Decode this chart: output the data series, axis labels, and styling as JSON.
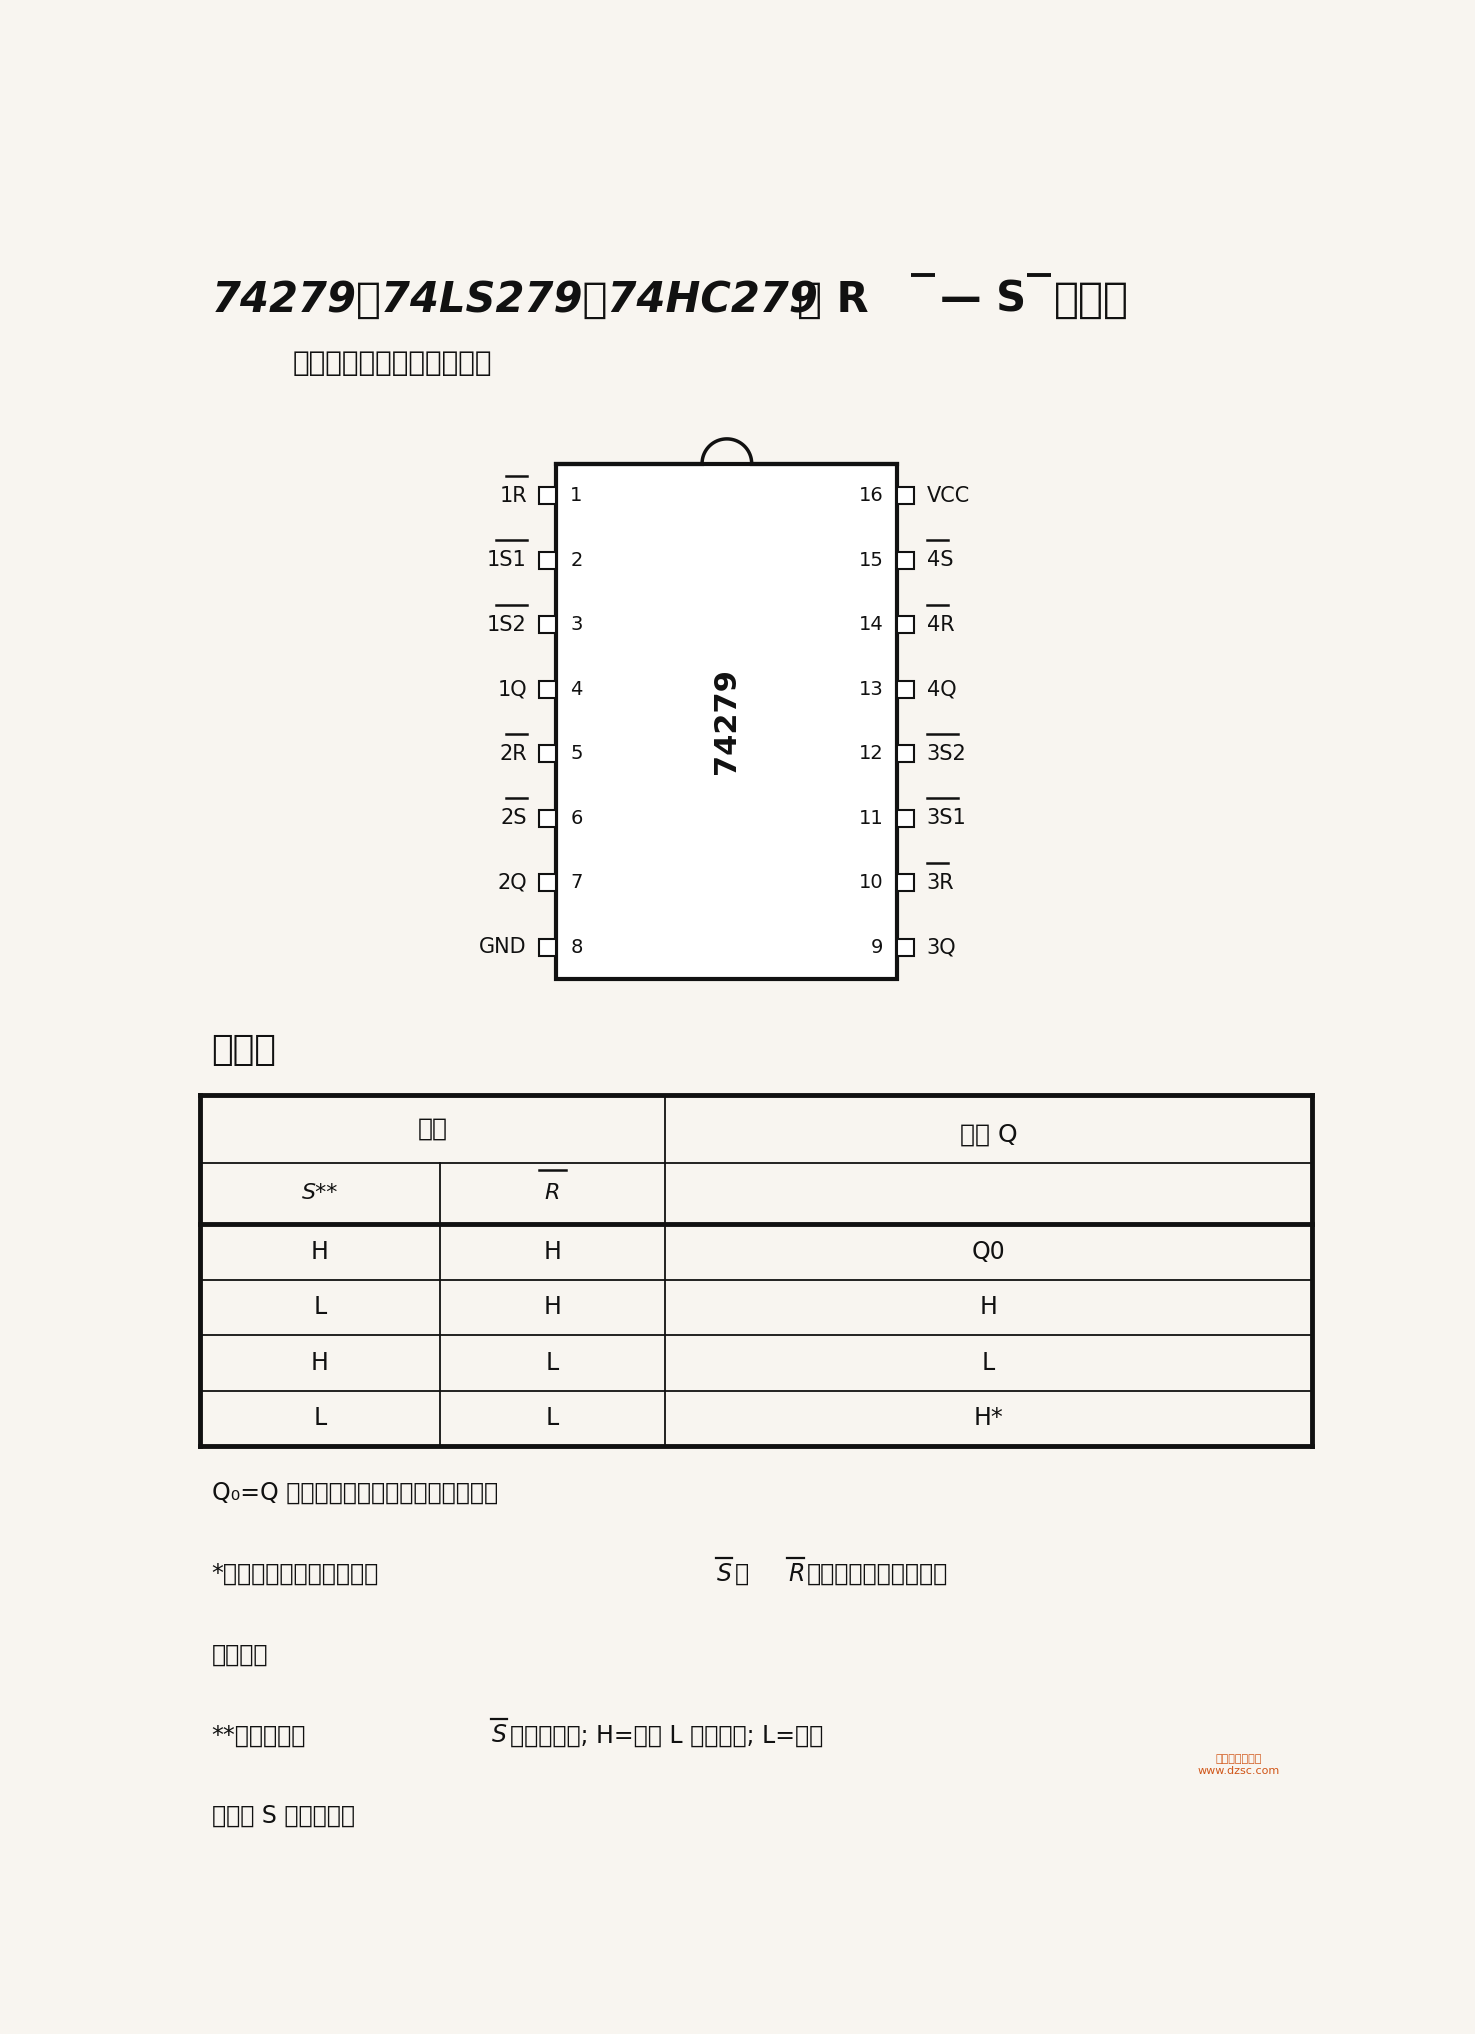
{
  "chip_label": "74279",
  "left_pins": [
    {
      "num": 1,
      "label": "1R",
      "overbar": true
    },
    {
      "num": 2,
      "label": "1S1",
      "overbar": true
    },
    {
      "num": 3,
      "label": "1S2",
      "overbar": true
    },
    {
      "num": 4,
      "label": "1Q",
      "overbar": false
    },
    {
      "num": 5,
      "label": "2R",
      "overbar": true
    },
    {
      "num": 6,
      "label": "2S",
      "overbar": true
    },
    {
      "num": 7,
      "label": "2Q",
      "overbar": false
    },
    {
      "num": 8,
      "label": "GND",
      "overbar": false
    }
  ],
  "right_pins": [
    {
      "num": 16,
      "label": "VCC",
      "overbar": false
    },
    {
      "num": 15,
      "label": "4S",
      "overbar": true
    },
    {
      "num": 14,
      "label": "4R",
      "overbar": true
    },
    {
      "num": 13,
      "label": "4Q",
      "overbar": false
    },
    {
      "num": 12,
      "label": "3S2",
      "overbar": true
    },
    {
      "num": 11,
      "label": "3S1",
      "overbar": true
    },
    {
      "num": 10,
      "label": "3R",
      "overbar": true
    },
    {
      "num": 9,
      "label": "3Q",
      "overbar": false
    }
  ],
  "table_rows": [
    [
      "H",
      "H",
      "Q0"
    ],
    [
      "L",
      "H",
      "H"
    ],
    [
      "H",
      "L",
      "L"
    ],
    [
      "L",
      "L",
      "H*"
    ]
  ],
  "bg_color": "#f8f5f0"
}
